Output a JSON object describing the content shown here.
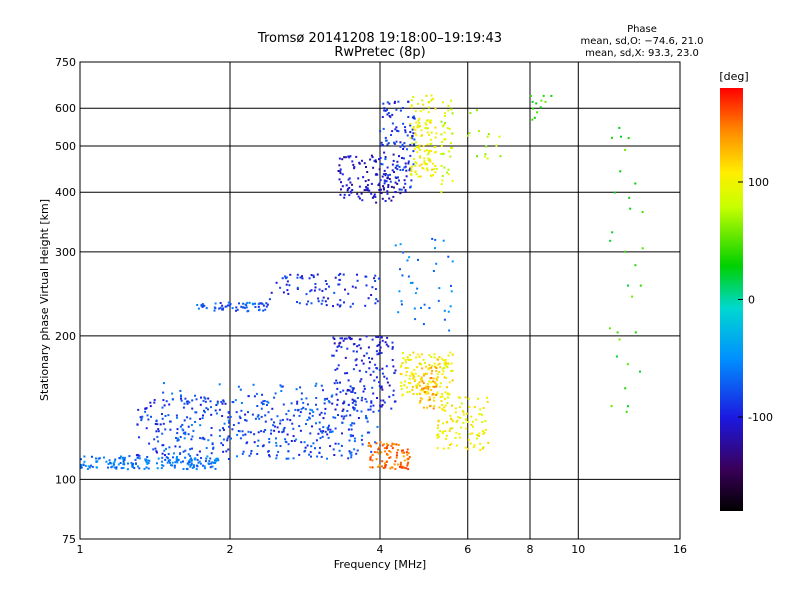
{
  "chart_data": {
    "type": "scatter",
    "title": "Tromsø 20141208 19:18:00–19:19:43",
    "subtitle": "RwPretec (8p)",
    "xlabel": "Frequency [MHz]",
    "ylabel": "Stationary phase Virtual Height [km]",
    "x_scale": "log",
    "y_scale": "log",
    "xlim": [
      1,
      16
    ],
    "ylim": [
      75,
      750
    ],
    "x_ticks": [
      1,
      2,
      4,
      6,
      8,
      10,
      16
    ],
    "x_tick_labels": [
      "1",
      "2",
      "4",
      "6",
      "8",
      "10",
      "16"
    ],
    "y_ticks": [
      75,
      100,
      200,
      300,
      400,
      500,
      600,
      750
    ],
    "y_tick_labels": [
      "75",
      "100",
      "200",
      "300",
      "400",
      "500",
      "600",
      "750"
    ],
    "grid": true,
    "stats_title": "Phase",
    "stats_lines": [
      "mean, sd,O: −74.6, 21.0",
      "mean, sd,X:  93.3, 23.0"
    ],
    "colorbar": {
      "label": "[deg]",
      "range": [
        -180,
        180
      ],
      "ticks": [
        100,
        0,
        -100
      ],
      "tick_labels": [
        "100",
        "0",
        "-100"
      ]
    },
    "series": [
      {
        "clusters": [
          {
            "x": [
              1.0,
              1.9
            ],
            "y": [
              105,
              112
            ],
            "phase": -60,
            "count": 180
          },
          {
            "x": [
              1.3,
              3.8
            ],
            "y": [
              112,
              150
            ],
            "phase": -85,
            "count": 320
          },
          {
            "x": [
              1.4,
              4.0
            ],
            "y": [
              110,
              160
            ],
            "phase": -70,
            "count": 180
          },
          {
            "x": [
              3.2,
              4.3
            ],
            "y": [
              140,
              200
            ],
            "phase": -100,
            "count": 150
          },
          {
            "x": [
              1.7,
              2.4
            ],
            "y": [
              225,
              235
            ],
            "phase": -75,
            "count": 60
          },
          {
            "x": [
              2.4,
              4.0
            ],
            "y": [
              230,
              270
            ],
            "phase": -90,
            "count": 90
          },
          {
            "x": [
              3.3,
              4.4
            ],
            "y": [
              380,
              480
            ],
            "phase": -110,
            "count": 120
          },
          {
            "x": [
              4.0,
              4.7
            ],
            "y": [
              400,
              620
            ],
            "phase": -90,
            "count": 120
          },
          {
            "x": [
              4.6,
              5.2
            ],
            "y": [
              430,
              640
            ],
            "phase": 100,
            "count": 120
          },
          {
            "x": [
              4.4,
              5.6
            ],
            "y": [
              150,
              185
            ],
            "phase": 105,
            "count": 140
          },
          {
            "x": [
              3.8,
              4.6
            ],
            "y": [
              105,
              120
            ],
            "phase": 150,
            "count": 90
          },
          {
            "x": [
              5.2,
              6.6
            ],
            "y": [
              115,
              150
            ],
            "phase": 100,
            "count": 110
          },
          {
            "x": [
              4.8,
              5.2
            ],
            "y": [
              140,
              175
            ],
            "phase": 130,
            "count": 60
          },
          {
            "x": [
              5.3,
              5.6
            ],
            "y": [
              400,
              640
            ],
            "phase": 85,
            "count": 40
          },
          {
            "x": [
              4.3,
              5.6
            ],
            "y": [
              200,
              320
            ],
            "phase": -60,
            "count": 40
          },
          {
            "x": [
              6.0,
              7.0
            ],
            "y": [
              470,
              600
            ],
            "phase": 70,
            "count": 15
          },
          {
            "x": [
              8.0,
              9.5
            ],
            "y": [
              560,
              640
            ],
            "phase": 40,
            "count": 12
          },
          {
            "x": [
              11.5,
              13.5
            ],
            "y": [
              120,
              560
            ],
            "phase": 40,
            "count": 30
          }
        ]
      }
    ]
  }
}
